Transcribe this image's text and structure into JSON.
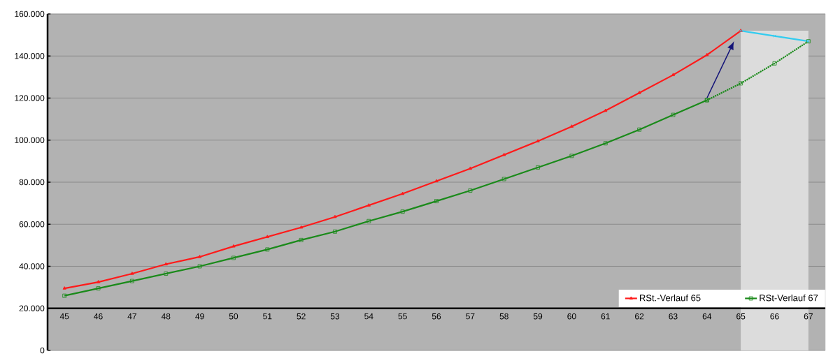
{
  "chart_data": {
    "type": "line",
    "categories": [
      "45",
      "46",
      "47",
      "48",
      "49",
      "50",
      "51",
      "52",
      "53",
      "54",
      "55",
      "56",
      "57",
      "58",
      "59",
      "60",
      "61",
      "62",
      "63",
      "64",
      "65",
      "66",
      "67"
    ],
    "series": [
      {
        "name": "RSt.-Verlauf 65",
        "color": "#ff1a1a",
        "marker": "triangle",
        "line_style": "solid",
        "values": [
          29500,
          32500,
          36500,
          41000,
          44500,
          49500,
          54000,
          58500,
          63500,
          69000,
          74500,
          80500,
          86500,
          93000,
          99500,
          106500,
          114000,
          122500,
          131000,
          140500,
          152000,
          null,
          null
        ]
      },
      {
        "name": "RSt-Verlauf 67",
        "color": "#1a8a1a",
        "marker": "square",
        "line_style": "solid",
        "values": [
          26000,
          29500,
          33000,
          36500,
          40000,
          44000,
          48000,
          52500,
          56500,
          61500,
          66000,
          71000,
          76000,
          81500,
          87000,
          92500,
          98500,
          105000,
          112000,
          119000,
          null,
          null,
          null
        ]
      },
      {
        "color": "#1a8a1a",
        "marker": "square",
        "line_style": "dotted",
        "values": [
          null,
          null,
          null,
          null,
          null,
          null,
          null,
          null,
          null,
          null,
          null,
          null,
          null,
          null,
          null,
          null,
          null,
          null,
          null,
          119000,
          127000,
          136500,
          147000
        ]
      },
      {
        "color": "#33ccf0",
        "marker": "cross",
        "line_style": "solid",
        "values": [
          null,
          null,
          null,
          null,
          null,
          null,
          null,
          null,
          null,
          null,
          null,
          null,
          null,
          null,
          null,
          null,
          null,
          null,
          null,
          null,
          152000,
          149500,
          147000
        ]
      }
    ],
    "ylim": [
      0,
      160000
    ],
    "yticks": [
      {
        "value": 0,
        "label": "0"
      },
      {
        "value": 20000,
        "label": "20.000"
      },
      {
        "value": 40000,
        "label": "40.000"
      },
      {
        "value": 60000,
        "label": "60.000"
      },
      {
        "value": 80000,
        "label": "80.000"
      },
      {
        "value": 100000,
        "label": "100.000"
      },
      {
        "value": 120000,
        "label": "120.000"
      },
      {
        "value": 140000,
        "label": "140.000"
      },
      {
        "value": 160000,
        "label": "160.000"
      }
    ],
    "grid": "y",
    "legend": "bottom right",
    "bands": [
      {
        "axis": "x",
        "from": "65",
        "to": "67",
        "color": "#dcdcdc"
      }
    ]
  }
}
